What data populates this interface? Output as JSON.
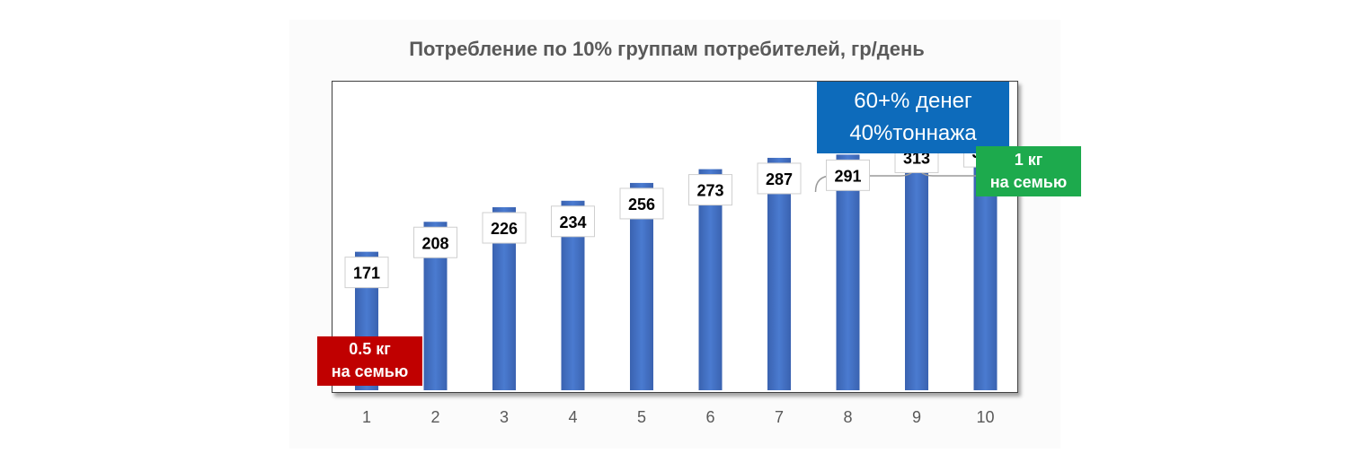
{
  "chart_data": {
    "type": "bar",
    "title": "Потребление по 10% группам потребителей, гр/день",
    "categories": [
      "1",
      "2",
      "3",
      "4",
      "5",
      "6",
      "7",
      "8",
      "9",
      "10"
    ],
    "values": [
      171,
      208,
      226,
      234,
      256,
      273,
      287,
      291,
      313,
      320
    ],
    "ylim": [
      0,
      380
    ],
    "grid": false,
    "legend": "none",
    "bar_color": "#4472c4",
    "annotations": {
      "top_groups": [
        "60+% денег",
        "40%тоннажа"
      ],
      "top_group_range": [
        "8",
        "10"
      ],
      "max_group": [
        "1 кг",
        "на семью"
      ],
      "min_group": [
        "0.5 кг",
        "на семью"
      ]
    }
  },
  "colors": {
    "blue_box": "#0d6bbb",
    "green_box": "#1daa4d",
    "red_box": "#c00000"
  }
}
